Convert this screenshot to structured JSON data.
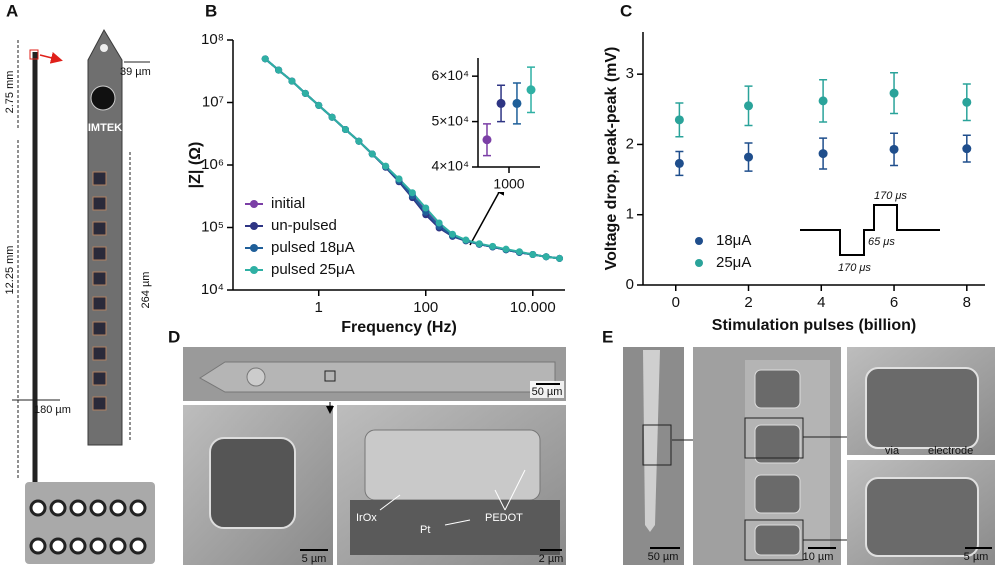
{
  "chart_data": [
    {
      "type": "line",
      "xlabel": "Frequency (Hz)",
      "ylabel": "|Z| (Ω)",
      "xscale": "log",
      "yscale": "log",
      "xlim": [
        0.025,
        40000
      ],
      "ylim": [
        10000,
        100000000
      ],
      "xticks": [
        1,
        100,
        {
          "value": 10000,
          "label": "10.000"
        }
      ],
      "yticks": [
        {
          "value": 10000,
          "label": "10⁴"
        },
        {
          "value": 100000,
          "label": "10⁵"
        },
        {
          "value": 1000000,
          "label": "10⁶"
        },
        {
          "value": 10000000,
          "label": "10⁷"
        },
        {
          "value": 100000000,
          "label": "10⁸"
        }
      ],
      "legend": "lower left",
      "x": [
        0.1,
        0.178,
        0.316,
        0.562,
        1,
        1.78,
        3.16,
        5.62,
        10,
        17.8,
        31.6,
        56.2,
        100,
        178,
        316,
        562,
        1000,
        1778,
        3162,
        5623,
        10000,
        17783,
        31623
      ],
      "series": [
        {
          "name": "initial",
          "color": "#7b3fa6",
          "values": [
            50000000,
            33000000,
            22000000,
            14000000,
            9000000,
            5800000,
            3700000,
            2400000,
            1500000,
            950000,
            580000,
            340000,
            190000,
            110000,
            75000,
            62000,
            54000,
            49000,
            44000,
            40000,
            37000,
            34000,
            32000
          ]
        },
        {
          "name": "un-pulsed",
          "color": "#2e3584",
          "values": [
            50000000,
            33000000,
            22000000,
            14000000,
            9000000,
            5800000,
            3700000,
            2400000,
            1500000,
            920000,
            540000,
            300000,
            160000,
            98000,
            72000,
            61000,
            54000,
            49000,
            44000,
            40000,
            37000,
            34000,
            32000
          ]
        },
        {
          "name": "pulsed 18μA",
          "color": "#1f5f99",
          "values": [
            50000000,
            33000000,
            22000000,
            14000000,
            9000000,
            5800000,
            3700000,
            2400000,
            1500000,
            940000,
            560000,
            320000,
            175000,
            104000,
            74000,
            62000,
            54000,
            49000,
            44000,
            40000,
            37000,
            34000,
            32000
          ]
        },
        {
          "name": "pulsed 25μA",
          "color": "#2fb0a4",
          "values": [
            50000000,
            33000000,
            22000000,
            14000000,
            9000000,
            5800000,
            3700000,
            2400000,
            1500000,
            960000,
            600000,
            360000,
            205000,
            118000,
            78000,
            63000,
            55000,
            50000,
            45000,
            41000,
            37000,
            34000,
            32000
          ]
        }
      ]
    },
    {
      "type": "scatter",
      "xlim": [
        700,
        1300
      ],
      "ylim": [
        40000,
        64000
      ],
      "xticks": [
        1000
      ],
      "yticks": [
        {
          "value": 40000,
          "label": "4×10⁴"
        },
        {
          "value": 50000,
          "label": "5×10⁴"
        },
        {
          "value": 60000,
          "label": "6×10⁴"
        }
      ],
      "series": [
        {
          "color": "#7b3fa6",
          "x": [
            787
          ],
          "values": [
            46000
          ],
          "errors": [
            3500
          ]
        },
        {
          "color": "#2e3584",
          "x": [
            923
          ],
          "values": [
            54000
          ],
          "errors": [
            4000
          ]
        },
        {
          "color": "#1f5f99",
          "x": [
            1077
          ],
          "values": [
            54000
          ],
          "errors": [
            4500
          ]
        },
        {
          "color": "#2fb0a4",
          "x": [
            1213
          ],
          "values": [
            57000
          ],
          "errors": [
            5000
          ]
        }
      ]
    },
    {
      "type": "scatter",
      "xlabel": "Stimulation pulses (billion)",
      "ylabel": "Voltage drop, peak-peak (mV)",
      "xlim": [
        -0.9,
        8.5
      ],
      "ylim": [
        0,
        3.6
      ],
      "xticks": [
        0,
        2,
        4,
        6,
        8
      ],
      "yticks": [
        0,
        1,
        2,
        3
      ],
      "legend": "lower center",
      "annotations": [
        "170 μs",
        "65 μs",
        "170 μs"
      ],
      "series": [
        {
          "name": "18μA",
          "color": "#1f4e8c",
          "x": [
            0.1,
            2,
            4.05,
            6,
            8
          ],
          "values": [
            1.73,
            1.82,
            1.87,
            1.93,
            1.94
          ],
          "errors": [
            0.17,
            0.2,
            0.22,
            0.23,
            0.19
          ]
        },
        {
          "name": "25μA",
          "color": "#2aa39a",
          "x": [
            0.1,
            2,
            4.05,
            6,
            8
          ],
          "values": [
            2.35,
            2.55,
            2.62,
            2.73,
            2.6
          ],
          "errors": [
            0.24,
            0.28,
            0.3,
            0.29,
            0.26
          ]
        }
      ]
    }
  ],
  "panels": {
    "a": {
      "label": "A",
      "tip_length": "2.75 mm",
      "shaft_length": "12.25 mm",
      "shaft_width": "180 µm",
      "tip_width": "39 µm",
      "array_length": "264 µm",
      "logo": "IMTEK"
    },
    "b": {
      "label": "B"
    },
    "c": {
      "label": "C"
    },
    "d": {
      "label": "D",
      "scale_top": "50 µm",
      "scale_left": "5 µm",
      "scale_right": "2 µm",
      "layers": [
        "IrOx",
        "Pt",
        "PEDOT"
      ]
    },
    "e": {
      "label": "E",
      "scale_1": "50 µm",
      "scale_2": "10 µm",
      "scale_3": "5 µm",
      "annotations": [
        "via",
        "electrode"
      ]
    }
  }
}
